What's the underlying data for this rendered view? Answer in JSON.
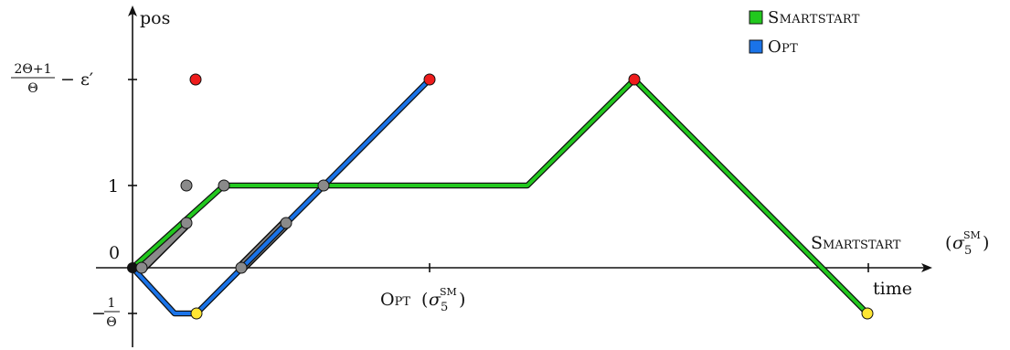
{
  "axes": {
    "y_label": "pos",
    "x_label": "time",
    "y_ticks": {
      "zero": "0",
      "one": "1",
      "neg_frac_num": "1",
      "neg_frac_den": "Θ",
      "neg_sign": "−",
      "top_num": "2Θ+1",
      "top_den": "Θ",
      "top_rest": "− ε′"
    },
    "x_ticks": {
      "opt_label": "Opt",
      "opt_sigma": "σ",
      "opt_sub": "5",
      "opt_sup": "SM",
      "smart_label": "Smartstart",
      "smart_sigma": "σ",
      "smart_sub": "5",
      "smart_sup": "SM"
    }
  },
  "legend": {
    "items": [
      {
        "label": "Smartstart",
        "color": "#22c81e"
      },
      {
        "label": "Opt",
        "color": "#1a73e8"
      }
    ]
  },
  "colors": {
    "green": "#22c81e",
    "blue": "#1a73e8",
    "red": "#ee1c1c",
    "yellow": "#ffe633",
    "gray": "#8a8a8a",
    "black": "#111111"
  }
}
